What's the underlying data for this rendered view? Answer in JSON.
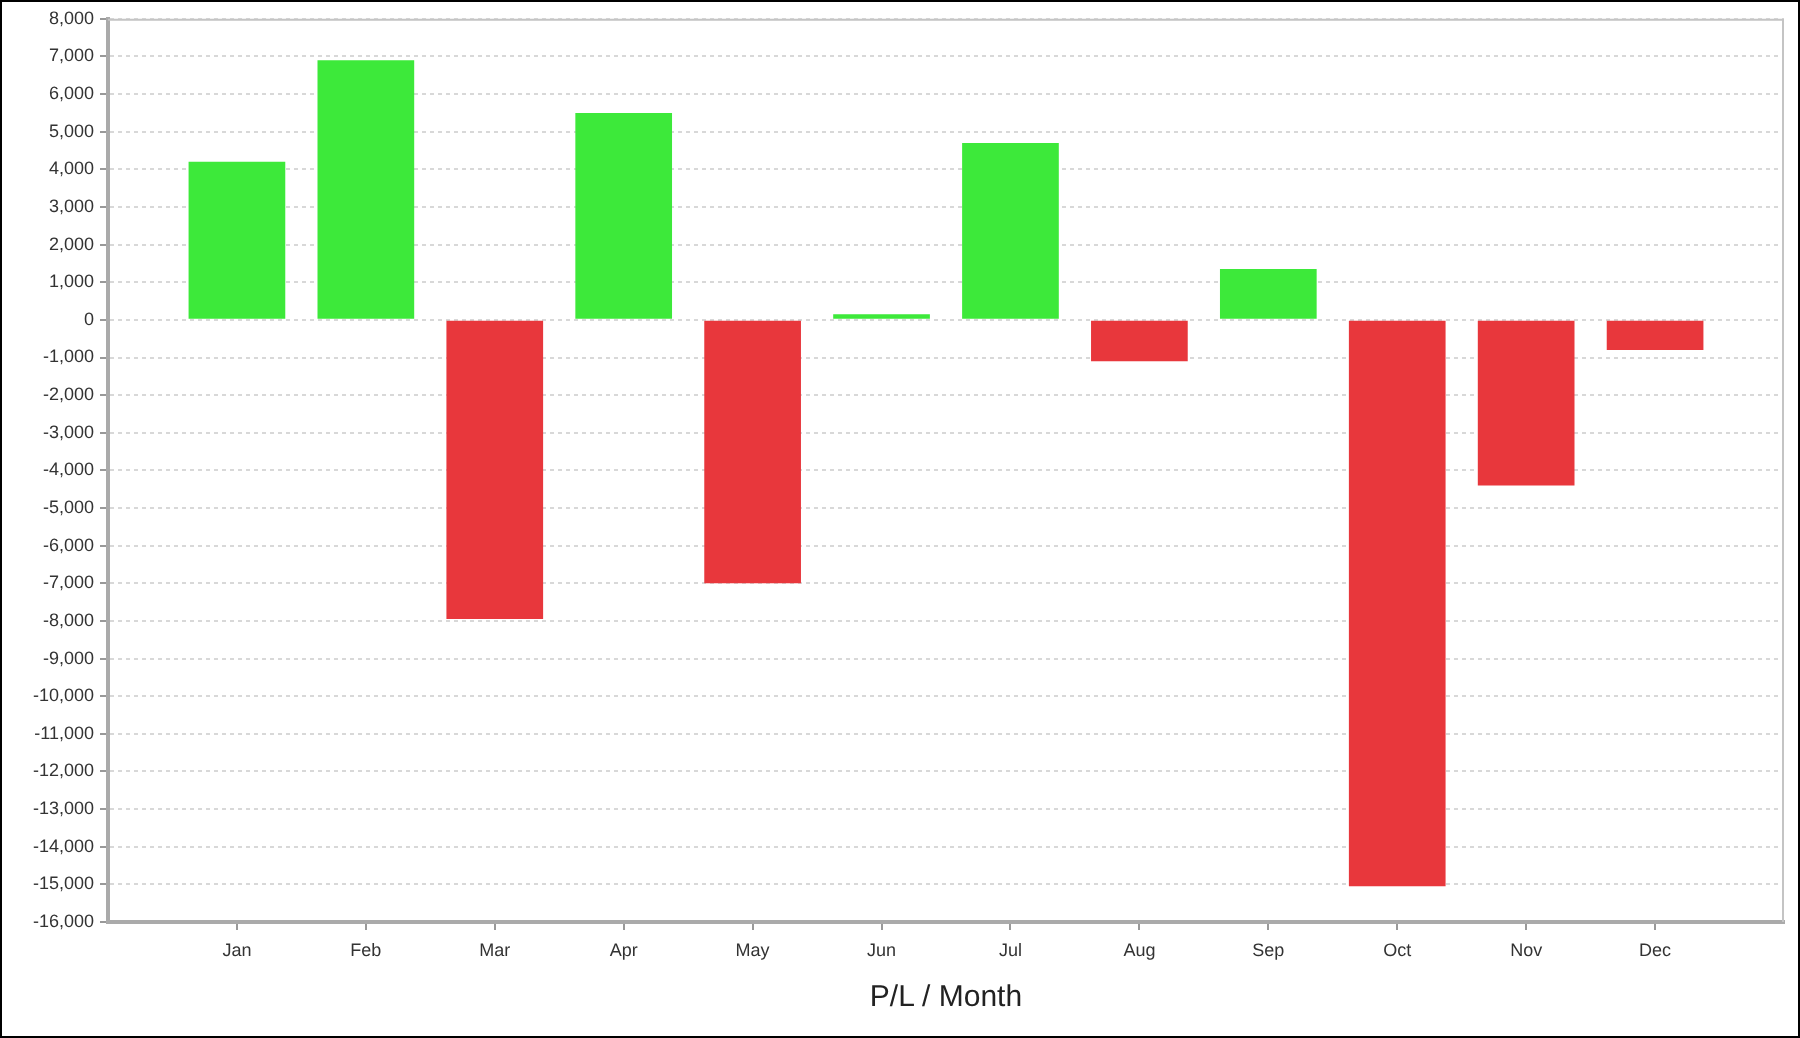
{
  "chart_data": {
    "type": "bar",
    "xlabel": "P/L / Month",
    "categories": [
      "Jan",
      "Feb",
      "Mar",
      "Apr",
      "May",
      "Jun",
      "Jul",
      "Aug",
      "Sep",
      "Oct",
      "Nov",
      "Dec"
    ],
    "values": [
      4200,
      6900,
      -7950,
      5500,
      -7000,
      150,
      4700,
      -1100,
      1350,
      -15050,
      -4400,
      -800
    ],
    "colors": [
      "#3de93a",
      "#3de93a",
      "#e8373c",
      "#3de93a",
      "#e8373c",
      "#3de93a",
      "#3de93a",
      "#e8373c",
      "#3de93a",
      "#e8373c",
      "#e8373c",
      "#e8373c"
    ],
    "ylim": [
      -16000,
      8000
    ],
    "yticks": [
      {
        "value": 8000,
        "label": "8,000"
      },
      {
        "value": 7000,
        "label": "7,000"
      },
      {
        "value": 6000,
        "label": "6,000"
      },
      {
        "value": 5000,
        "label": "5,000"
      },
      {
        "value": 4000,
        "label": "4,000"
      },
      {
        "value": 3000,
        "label": "3,000"
      },
      {
        "value": 2000,
        "label": "2,000"
      },
      {
        "value": 1000,
        "label": "1,000"
      },
      0,
      {
        "value": -1000,
        "label": "-1,000"
      },
      {
        "value": -2000,
        "label": "-2,000"
      },
      {
        "value": -3000,
        "label": "-3,000"
      },
      {
        "value": -4000,
        "label": "-4,000"
      },
      {
        "value": -5000,
        "label": "-5,000"
      },
      {
        "value": -6000,
        "label": "-6,000"
      },
      {
        "value": -7000,
        "label": "-7,000"
      },
      {
        "value": -8000,
        "label": "-8,000"
      },
      {
        "value": -9000,
        "label": "-9,000"
      },
      {
        "value": -10000,
        "label": "-10,000"
      },
      {
        "value": -11000,
        "label": "-11,000"
      },
      {
        "value": -12000,
        "label": "-12,000"
      },
      {
        "value": -13000,
        "label": "-13,000"
      },
      {
        "value": -14000,
        "label": "-14,000"
      },
      {
        "value": -15000,
        "label": "-15,000"
      },
      {
        "value": -16000,
        "label": "-16,000"
      }
    ],
    "grid": "y"
  }
}
